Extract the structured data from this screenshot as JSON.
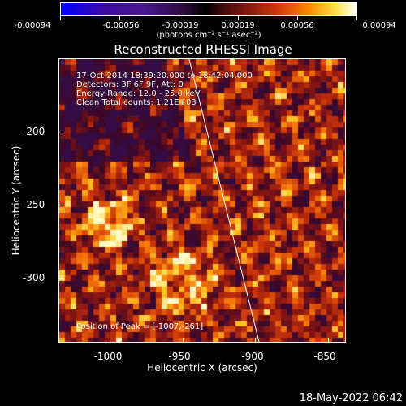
{
  "colorbar": {
    "ticks": [
      "-0.00094",
      "-0.00056",
      "-0.00019",
      "0.00019",
      "0.00056",
      "0.00094"
    ],
    "units": "(photons cm⁻² s⁻¹ asec⁻²)"
  },
  "title": "Reconstructed RHESSI Image",
  "info": {
    "line1": "17-Oct-2014 18:39:20.000 to 18:42:04.000",
    "line2": "Detectors: 3F 6F 9F, Att: 0",
    "line3": "Energy Range: 12.0 - 25.0 keV",
    "line4": "Clean     Total counts: 1.21E+03"
  },
  "peak_text": "Position of Peak = [-1007,-261]",
  "axes": {
    "xlabel": "Heliocentric X (arcsec)",
    "ylabel": "Heliocentric Y (arcsec)",
    "xticks": [
      "-1000",
      "-950",
      "-900",
      "-850"
    ],
    "yticks": [
      "-200",
      "-250",
      "-300"
    ]
  },
  "timestamp": "18-May-2022 06:42",
  "colors": {
    "background": "#000000",
    "limb_line": "#ffffff"
  }
}
